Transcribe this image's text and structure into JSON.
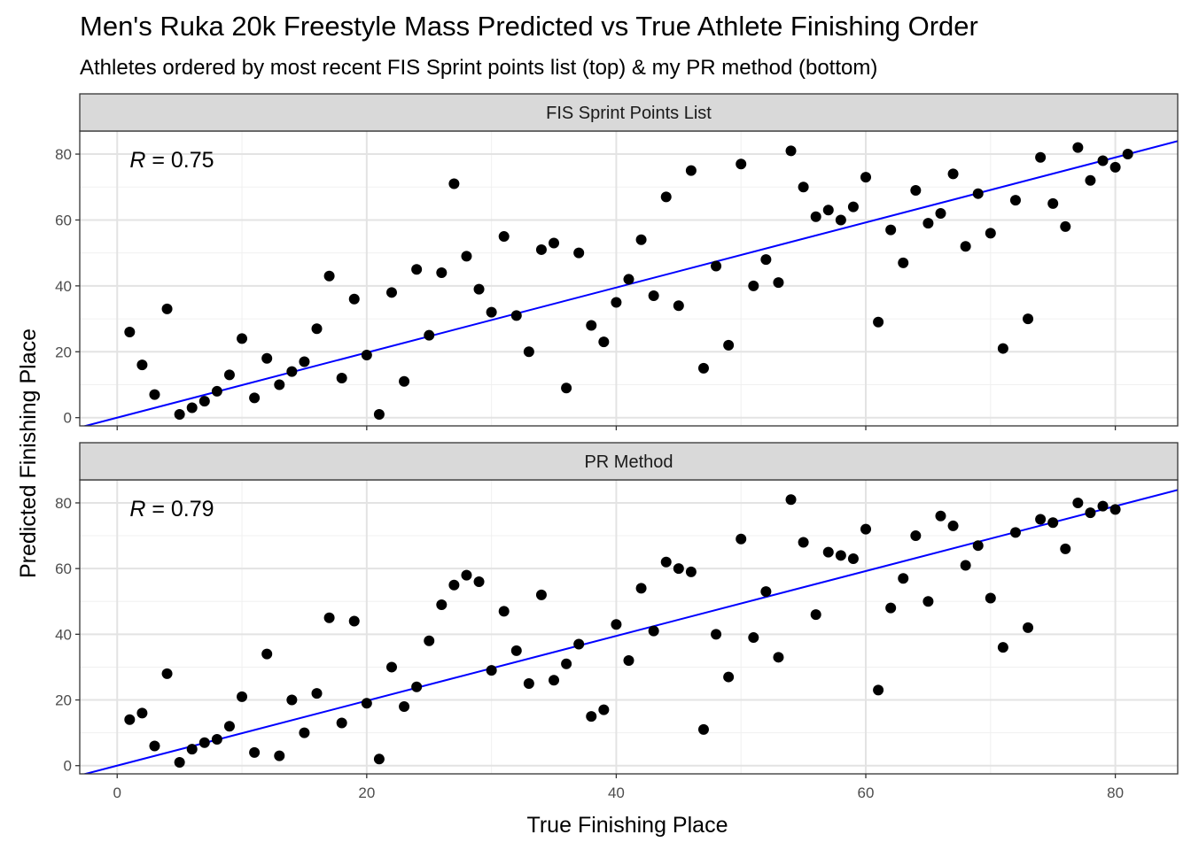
{
  "chart_data": {
    "type": "scatter",
    "title": "Men's Ruka 20k Freestyle Mass Predicted vs True Athlete Finishing Order",
    "subtitle": "Athletes ordered by most recent FIS Sprint points list (top) & my PR method (bottom)",
    "xlabel": "True Finishing Place",
    "ylabel": "Predicted Finishing Place",
    "xlim": [
      -3,
      85
    ],
    "ylim": [
      -2.5,
      87
    ],
    "x_ticks": [
      0,
      20,
      40,
      60,
      80
    ],
    "y_ticks": [
      0,
      20,
      40,
      60,
      80
    ],
    "grid": true,
    "point_color": "#000000",
    "line_color": "#0000ff",
    "strip_color": "#d9d9d9",
    "panels": [
      {
        "strip": "FIS Sprint Points List",
        "r_label": "R",
        "r_value": "= 0.75",
        "fit": {
          "intercept": 0.0,
          "slope": 0.9875
        },
        "points": [
          [
            1,
            26
          ],
          [
            2,
            16
          ],
          [
            3,
            7
          ],
          [
            4,
            33
          ],
          [
            5,
            1
          ],
          [
            6,
            3
          ],
          [
            7,
            5
          ],
          [
            8,
            8
          ],
          [
            9,
            13
          ],
          [
            10,
            24
          ],
          [
            11,
            6
          ],
          [
            12,
            18
          ],
          [
            13,
            10
          ],
          [
            14,
            14
          ],
          [
            15,
            17
          ],
          [
            16,
            27
          ],
          [
            17,
            43
          ],
          [
            18,
            12
          ],
          [
            19,
            36
          ],
          [
            20,
            19
          ],
          [
            21,
            1
          ],
          [
            22,
            38
          ],
          [
            23,
            11
          ],
          [
            24,
            45
          ],
          [
            25,
            25
          ],
          [
            26,
            44
          ],
          [
            27,
            71
          ],
          [
            28,
            49
          ],
          [
            29,
            39
          ],
          [
            30,
            32
          ],
          [
            31,
            55
          ],
          [
            32,
            31
          ],
          [
            33,
            20
          ],
          [
            34,
            51
          ],
          [
            35,
            53
          ],
          [
            36,
            9
          ],
          [
            37,
            50
          ],
          [
            38,
            28
          ],
          [
            39,
            23
          ],
          [
            40,
            35
          ],
          [
            41,
            42
          ],
          [
            42,
            54
          ],
          [
            43,
            37
          ],
          [
            44,
            67
          ],
          [
            45,
            34
          ],
          [
            46,
            75
          ],
          [
            47,
            15
          ],
          [
            48,
            46
          ],
          [
            49,
            22
          ],
          [
            50,
            77
          ],
          [
            51,
            40
          ],
          [
            52,
            48
          ],
          [
            53,
            41
          ],
          [
            54,
            81
          ],
          [
            55,
            70
          ],
          [
            56,
            61
          ],
          [
            57,
            63
          ],
          [
            58,
            60
          ],
          [
            59,
            64
          ],
          [
            60,
            73
          ],
          [
            61,
            29
          ],
          [
            62,
            57
          ],
          [
            63,
            47
          ],
          [
            64,
            69
          ],
          [
            65,
            59
          ],
          [
            66,
            62
          ],
          [
            67,
            74
          ],
          [
            68,
            52
          ],
          [
            69,
            68
          ],
          [
            70,
            56
          ],
          [
            71,
            21
          ],
          [
            72,
            66
          ],
          [
            73,
            30
          ],
          [
            74,
            79
          ],
          [
            75,
            65
          ],
          [
            76,
            58
          ],
          [
            77,
            82
          ],
          [
            78,
            72
          ],
          [
            79,
            78
          ],
          [
            80,
            76
          ],
          [
            81,
            80
          ]
        ]
      },
      {
        "strip": "PR Method",
        "r_label": "R",
        "r_value": "= 0.79",
        "fit": {
          "intercept": 0.0,
          "slope": 0.9875
        },
        "points": [
          [
            1,
            14
          ],
          [
            2,
            16
          ],
          [
            3,
            6
          ],
          [
            4,
            28
          ],
          [
            5,
            1
          ],
          [
            6,
            5
          ],
          [
            7,
            7
          ],
          [
            8,
            8
          ],
          [
            9,
            12
          ],
          [
            10,
            21
          ],
          [
            11,
            4
          ],
          [
            12,
            34
          ],
          [
            13,
            3
          ],
          [
            14,
            20
          ],
          [
            15,
            10
          ],
          [
            16,
            22
          ],
          [
            17,
            45
          ],
          [
            18,
            13
          ],
          [
            19,
            44
          ],
          [
            20,
            19
          ],
          [
            21,
            2
          ],
          [
            22,
            30
          ],
          [
            23,
            18
          ],
          [
            24,
            24
          ],
          [
            25,
            38
          ],
          [
            26,
            49
          ],
          [
            27,
            55
          ],
          [
            28,
            58
          ],
          [
            29,
            56
          ],
          [
            30,
            29
          ],
          [
            31,
            47
          ],
          [
            32,
            35
          ],
          [
            33,
            25
          ],
          [
            34,
            52
          ],
          [
            35,
            26
          ],
          [
            36,
            31
          ],
          [
            37,
            37
          ],
          [
            38,
            15
          ],
          [
            39,
            17
          ],
          [
            40,
            43
          ],
          [
            41,
            32
          ],
          [
            42,
            54
          ],
          [
            43,
            41
          ],
          [
            44,
            62
          ],
          [
            45,
            60
          ],
          [
            46,
            59
          ],
          [
            47,
            11
          ],
          [
            48,
            40
          ],
          [
            49,
            27
          ],
          [
            50,
            69
          ],
          [
            51,
            39
          ],
          [
            52,
            53
          ],
          [
            53,
            33
          ],
          [
            54,
            81
          ],
          [
            55,
            68
          ],
          [
            56,
            46
          ],
          [
            57,
            65
          ],
          [
            58,
            64
          ],
          [
            59,
            63
          ],
          [
            60,
            72
          ],
          [
            61,
            23
          ],
          [
            62,
            48
          ],
          [
            63,
            57
          ],
          [
            64,
            70
          ],
          [
            65,
            50
          ],
          [
            66,
            76
          ],
          [
            67,
            73
          ],
          [
            68,
            61
          ],
          [
            69,
            67
          ],
          [
            70,
            51
          ],
          [
            71,
            36
          ],
          [
            72,
            71
          ],
          [
            73,
            42
          ],
          [
            74,
            75
          ],
          [
            75,
            74
          ],
          [
            76,
            66
          ],
          [
            77,
            80
          ],
          [
            78,
            77
          ],
          [
            79,
            79
          ],
          [
            80,
            78
          ]
        ]
      }
    ]
  }
}
